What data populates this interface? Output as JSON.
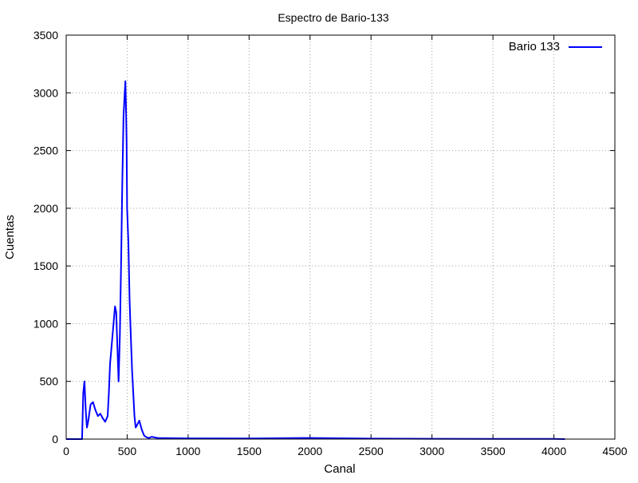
{
  "chart_data": {
    "type": "line",
    "title": "Espectro de Bario-133",
    "xlabel": "Canal",
    "ylabel": "Cuentas",
    "xlim": [
      0,
      4500
    ],
    "ylim": [
      0,
      3500
    ],
    "xticks": [
      0,
      500,
      1000,
      1500,
      2000,
      2500,
      3000,
      3500,
      4000,
      4500
    ],
    "yticks": [
      0,
      500,
      1000,
      1500,
      2000,
      2500,
      3000,
      3500
    ],
    "grid": true,
    "legend_position": "top-right",
    "series": [
      {
        "name": "Bario 133",
        "color": "#0000ff",
        "x": [
          0,
          130,
          140,
          150,
          160,
          170,
          180,
          200,
          220,
          240,
          260,
          280,
          300,
          320,
          340,
          350,
          360,
          380,
          400,
          410,
          420,
          430,
          440,
          450,
          460,
          470,
          480,
          485,
          490,
          495,
          500,
          510,
          520,
          530,
          540,
          550,
          560,
          570,
          580,
          600,
          620,
          640,
          660,
          680,
          700,
          750,
          800,
          1000,
          1500,
          2000,
          2500,
          3000,
          3500,
          4000,
          4090
        ],
        "y": [
          0,
          0,
          400,
          500,
          250,
          100,
          150,
          300,
          320,
          250,
          200,
          220,
          180,
          150,
          200,
          400,
          650,
          900,
          1150,
          1100,
          800,
          500,
          900,
          1500,
          2200,
          2800,
          3000,
          3100,
          2900,
          2600,
          2000,
          1700,
          1200,
          900,
          600,
          400,
          200,
          100,
          120,
          160,
          80,
          30,
          15,
          10,
          20,
          10,
          8,
          6,
          5,
          10,
          4,
          3,
          2,
          2,
          0
        ]
      }
    ]
  }
}
